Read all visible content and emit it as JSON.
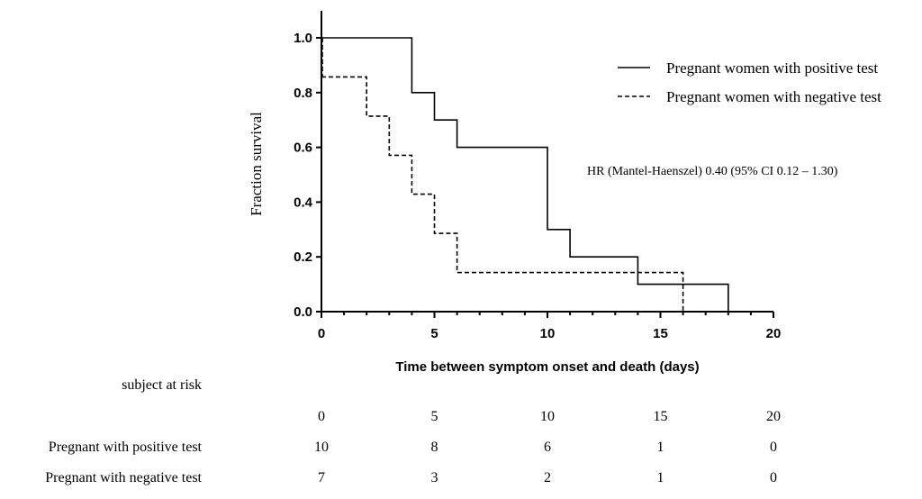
{
  "chart_data": {
    "type": "line",
    "ylabel": "Fraction survival",
    "xlabel": "Time between symptom onset and death (days)",
    "xlim": [
      0,
      20
    ],
    "ylim": [
      0,
      1.0
    ],
    "x_ticks": [
      "0",
      "5",
      "10",
      "15",
      "20"
    ],
    "y_ticks": [
      "0.0",
      "0.2",
      "0.4",
      "0.6",
      "0.8",
      "1.0"
    ],
    "series": [
      {
        "name": "Pregnant women with positive test",
        "style": "solid",
        "steps": [
          [
            0,
            1.0
          ],
          [
            4,
            0.8
          ],
          [
            5,
            0.7
          ],
          [
            6,
            0.6
          ],
          [
            10,
            0.3
          ],
          [
            11,
            0.2
          ],
          [
            14,
            0.1
          ],
          [
            18,
            0.0
          ]
        ]
      },
      {
        "name": "Pregnant women with negative  test",
        "style": "dashed",
        "steps": [
          [
            0,
            0.857
          ],
          [
            2,
            0.714
          ],
          [
            3,
            0.571
          ],
          [
            4,
            0.429
          ],
          [
            5,
            0.286
          ],
          [
            6,
            0.143
          ],
          [
            16,
            0.0
          ]
        ]
      }
    ],
    "annotation": "HR (Mantel-Haenszel) 0.40 (95% CI 0.12 – 1.30)",
    "risk_table": {
      "title": "subject at risk",
      "times": [
        "0",
        "5",
        "10",
        "15",
        "20"
      ],
      "rows": [
        {
          "label": "Pregnant with positive test",
          "values": [
            "10",
            "8",
            "6",
            "1",
            "0"
          ]
        },
        {
          "label": "Pregnant with negative test",
          "values": [
            "7",
            "3",
            "2",
            "1",
            "0"
          ]
        }
      ]
    }
  }
}
